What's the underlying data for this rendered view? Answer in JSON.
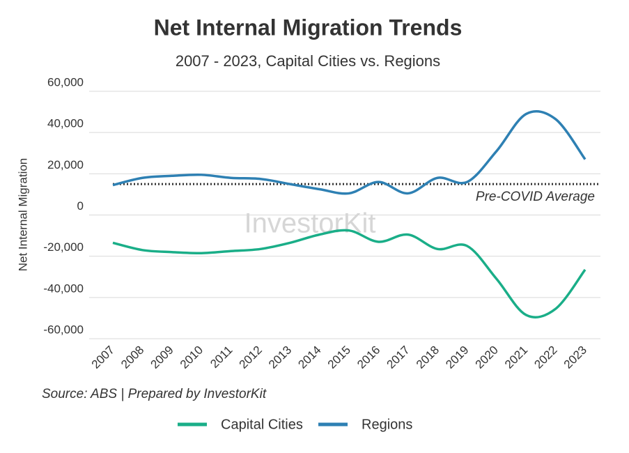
{
  "chart_data": {
    "type": "line",
    "title": "Net Internal Migration Trends",
    "subtitle": "2007 - 2023, Capital Cities vs. Regions",
    "y_label": "Net Internal Migration",
    "source": "Source: ABS | Prepared by InvestorKit",
    "watermark": "InvestorKit",
    "categories": [
      "2007",
      "2008",
      "2009",
      "2010",
      "2011",
      "2012",
      "2013",
      "2014",
      "2015",
      "2016",
      "2017",
      "2018",
      "2019",
      "2020",
      "2021",
      "2022",
      "2023"
    ],
    "series": [
      {
        "name": "Capital Cities",
        "color": "#1aae88",
        "values": [
          -13500,
          -17000,
          -18000,
          -18500,
          -17500,
          -16500,
          -13500,
          -9500,
          -7500,
          -13000,
          -9500,
          -16500,
          -15000,
          -31000,
          -48500,
          -45500,
          -26500
        ]
      },
      {
        "name": "Regions",
        "color": "#2e80b3",
        "values": [
          14500,
          18000,
          19000,
          19500,
          18000,
          17500,
          15000,
          12500,
          10500,
          16000,
          10500,
          18000,
          16000,
          31000,
          49000,
          46500,
          27000
        ]
      }
    ],
    "reference_line": {
      "value": 15000,
      "label": "Pre-COVID Average"
    },
    "ylim": [
      -60000,
      60000
    ],
    "yticks": [
      {
        "value": -60000,
        "label": "-60,000"
      },
      {
        "value": -40000,
        "label": "-40,000"
      },
      {
        "value": -20000,
        "label": "-20,000"
      },
      0,
      {
        "value": 20000,
        "label": "20,000"
      },
      {
        "value": 40000,
        "label": "40,000"
      },
      {
        "value": 60000,
        "label": "60,000"
      }
    ],
    "grid": true,
    "legend": "bottom"
  }
}
